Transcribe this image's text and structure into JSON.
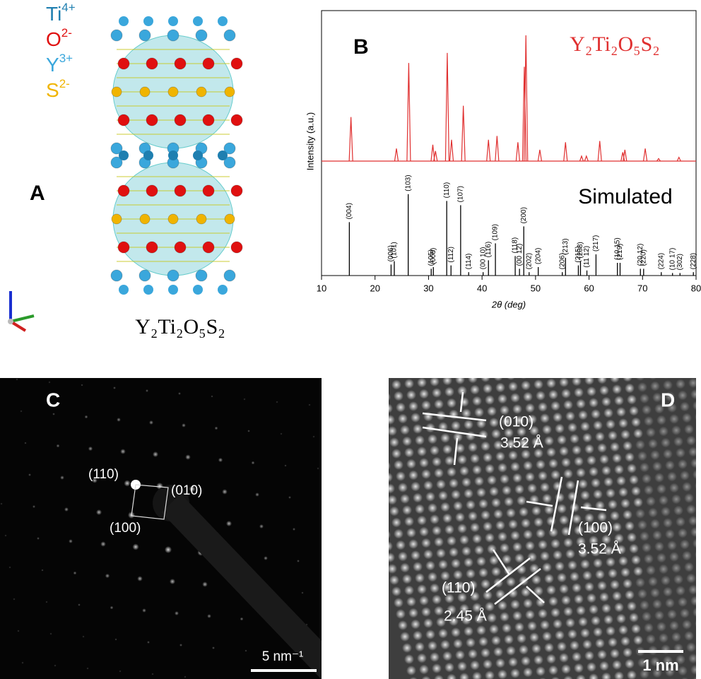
{
  "panel_a": {
    "label": "A",
    "legend": [
      {
        "symbol": "Ti",
        "charge": "4+",
        "color": "#1f7fb0"
      },
      {
        "symbol": "O",
        "charge": "2-",
        "color": "#e01010"
      },
      {
        "symbol": "Y",
        "charge": "3+",
        "color": "#3aa7dc"
      },
      {
        "symbol": "S",
        "charge": "2-",
        "color": "#f0b400"
      }
    ],
    "formula": "Y₂Ti₂O₅S₂"
  },
  "chart_data": {
    "type": "xrd",
    "panel_label": "B",
    "xlabel": "2θ (deg)",
    "ylabel": "Intensity (a.u.)",
    "xlim": [
      10,
      80
    ],
    "xticks": [
      10,
      20,
      30,
      40,
      50,
      60,
      70,
      80
    ],
    "series": [
      {
        "name": "Y₂Ti₂O₅S₂",
        "color": "#e03030",
        "ylim": [
          0,
          100
        ],
        "x": [
          15.5,
          24,
          26.3,
          30.8,
          31.3,
          33.5,
          34.3,
          36.5,
          41.2,
          42.8,
          46.7,
          47.9,
          48.2,
          50.8,
          55.6,
          58.6,
          59.5,
          62.0,
          66.3,
          66.7,
          70.5,
          73,
          76.8
        ],
        "values": [
          35,
          10,
          78,
          13,
          8,
          86,
          17,
          44,
          17,
          20,
          15,
          75,
          100,
          9,
          15,
          4,
          4,
          16,
          7,
          9,
          10,
          2,
          3
        ]
      },
      {
        "name": "Simulated",
        "color": "#000000",
        "ylim": [
          0,
          100
        ],
        "x": [
          15.2,
          23.0,
          23.6,
          26.2,
          30.5,
          30.9,
          33.4,
          34.2,
          36.0,
          37.5,
          40.2,
          41.2,
          42.5,
          46.2,
          47.0,
          47.8,
          48.8,
          50.5,
          55.0,
          55.6,
          58.0,
          58.4,
          59.6,
          61.3,
          65.3,
          65.8,
          69.6,
          70.2,
          73.5,
          75.6,
          77.0,
          79.5
        ],
        "values": [
          63,
          13,
          17,
          96,
          8,
          10,
          88,
          12,
          83,
          4,
          4,
          18,
          38,
          23,
          8,
          58,
          4,
          10,
          4,
          21,
          12,
          17,
          6,
          25,
          15,
          15,
          8,
          8,
          4,
          3,
          3,
          4
        ],
        "labels": [
          "(004)",
          "(006)",
          "(101)",
          "(103)",
          "(105)",
          "(008)",
          "(110)",
          "(112)",
          "(107)",
          "(114)",
          "(00 10)",
          "(116)",
          "(109)",
          "(118)",
          "(00 12)",
          "(200)",
          "(202)",
          "(204)",
          "(206)",
          "(213)",
          "(215)",
          "(208)",
          "(11 12)",
          "(217)",
          "(10 15)",
          "(219)",
          "(20 12)",
          "(220)",
          "(224)",
          "(10 17)",
          "(302)",
          "(228)"
        ]
      }
    ]
  },
  "panel_c": {
    "label": "C",
    "spots": [
      "(110)",
      "(010)",
      "(100)"
    ],
    "scale_bar": "5 nm⁻¹"
  },
  "panel_d": {
    "label": "D",
    "planes": [
      {
        "hkl": "(010)",
        "d": "3.52 Å"
      },
      {
        "hkl": "(100)",
        "d": "3.52 Å"
      },
      {
        "hkl": "(110)",
        "d": "2.45 Å"
      }
    ],
    "scale_bar": "1 nm"
  }
}
